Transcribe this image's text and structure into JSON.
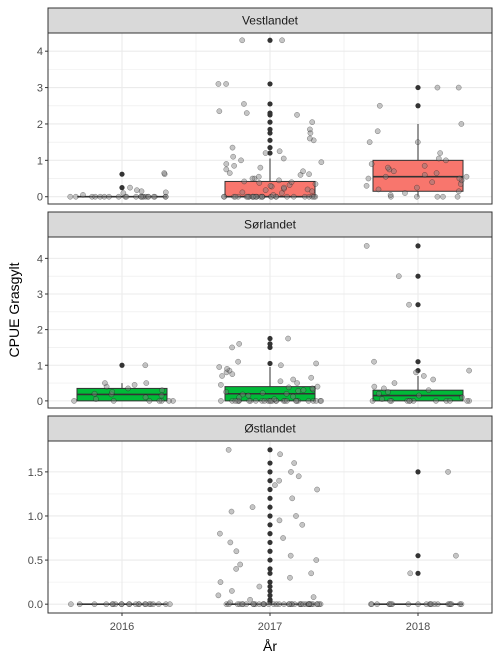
{
  "chart_data": {
    "type": "box",
    "ylabel": "CPUE Grasgylt",
    "xlabel": "År",
    "categories": [
      "2016",
      "2017",
      "2018"
    ],
    "colors": {
      "Vestlandet": "#F8766D",
      "Sørlandet": "#00BA38",
      "Østlandet": "#619CFF",
      "strip": "#D9D9D9",
      "grid": "#EBEBEB",
      "border": "#333333",
      "point": "#7F7F7F",
      "outlier": "#333333"
    },
    "panels": [
      {
        "name": "Vestlandet",
        "ylim": [
          -0.2,
          4.5
        ],
        "yticks": [
          0,
          1,
          2,
          3,
          4
        ],
        "ytick_labels": [
          "0",
          "1",
          "2",
          "3",
          "4"
        ],
        "boxes": [
          {
            "x": "2016",
            "q1": 0,
            "median": 0,
            "q3": 0,
            "whisker_low": 0,
            "whisker_high": 0,
            "outliers": [
              0.25,
              0.62
            ]
          },
          {
            "x": "2017",
            "q1": 0,
            "median": 0,
            "q3": 0.42,
            "whisker_low": 0,
            "whisker_high": 1.05,
            "outliers": [
              1.2,
              1.35,
              1.55,
              1.75,
              1.85,
              2.05,
              2.25,
              2.3,
              2.55,
              3.1,
              4.3
            ]
          },
          {
            "x": "2018",
            "q1": 0.15,
            "median": 0.55,
            "q3": 1.0,
            "whisker_low": 0,
            "whisker_high": 2.0,
            "outliers": [
              2.5,
              3.0
            ]
          }
        ],
        "points": [
          {
            "x": "2016",
            "values": [
              0,
              0,
              0,
              0,
              0,
              0,
              0,
              0,
              0,
              0,
              0,
              0,
              0,
              0,
              0,
              0,
              0,
              0,
              0,
              0,
              0,
              0,
              0.05,
              0.1,
              0.12,
              0.15,
              0.18,
              0.25,
              0.62,
              0.65
            ]
          },
          {
            "x": "2017",
            "values": [
              0,
              0,
              0,
              0,
              0,
              0,
              0,
              0,
              0,
              0,
              0,
              0,
              0,
              0,
              0,
              0,
              0,
              0,
              0,
              0,
              0,
              0,
              0,
              0,
              0,
              0,
              0,
              0,
              0,
              0,
              0,
              0.05,
              0.1,
              0.12,
              0.15,
              0.18,
              0.2,
              0.22,
              0.25,
              0.28,
              0.3,
              0.32,
              0.35,
              0.38,
              0.4,
              0.42,
              0.45,
              0.5,
              0.5,
              0.55,
              0.6,
              0.62,
              0.65,
              0.7,
              0.75,
              0.8,
              0.85,
              0.9,
              0.95,
              1.0,
              1.05,
              1.1,
              1.2,
              1.25,
              1.35,
              1.55,
              1.6,
              1.75,
              1.85,
              2.05,
              2.25,
              2.3,
              2.35,
              2.55,
              3.1,
              3.1,
              4.3,
              4.3
            ]
          },
          {
            "x": "2018",
            "values": [
              0,
              0,
              0,
              0,
              0,
              0.05,
              0.1,
              0.15,
              0.2,
              0.25,
              0.3,
              0.35,
              0.4,
              0.45,
              0.5,
              0.5,
              0.55,
              0.55,
              0.6,
              0.65,
              0.7,
              0.75,
              0.8,
              0.85,
              0.9,
              1.0,
              1.05,
              1.2,
              1.5,
              1.5,
              1.8,
              2.0,
              2.5,
              3.0,
              3.0
            ]
          }
        ]
      },
      {
        "name": "Sørlandet",
        "ylim": [
          -0.2,
          4.6
        ],
        "yticks": [
          0,
          1,
          2,
          3,
          4
        ],
        "ytick_labels": [
          "0",
          "1",
          "2",
          "3",
          "4"
        ],
        "boxes": [
          {
            "x": "2016",
            "q1": 0,
            "median": 0.18,
            "q3": 0.35,
            "whisker_low": 0,
            "whisker_high": 0.5,
            "outliers": [
              1.0
            ]
          },
          {
            "x": "2017",
            "q1": 0,
            "median": 0.2,
            "q3": 0.4,
            "whisker_low": 0,
            "whisker_high": 0.95,
            "outliers": [
              1.05,
              1.5,
              1.6,
              1.75
            ]
          },
          {
            "x": "2018",
            "q1": 0,
            "median": 0.15,
            "q3": 0.3,
            "whisker_low": 0,
            "whisker_high": 0.7,
            "outliers": [
              0.85,
              1.1,
              2.7,
              3.5,
              4.35
            ]
          }
        ],
        "points": [
          {
            "x": "2016",
            "values": [
              0,
              0,
              0,
              0,
              0,
              0,
              0,
              0.05,
              0.1,
              0.15,
              0.18,
              0.2,
              0.25,
              0.3,
              0.35,
              0.4,
              0.45,
              0.5,
              0.5,
              1.0
            ]
          },
          {
            "x": "2017",
            "values": [
              0,
              0,
              0,
              0,
              0,
              0,
              0,
              0,
              0,
              0,
              0,
              0,
              0,
              0,
              0,
              0,
              0,
              0,
              0,
              0,
              0,
              0,
              0,
              0,
              0,
              0,
              0,
              0,
              0.05,
              0.1,
              0.12,
              0.15,
              0.18,
              0.2,
              0.22,
              0.25,
              0.28,
              0.3,
              0.32,
              0.35,
              0.38,
              0.4,
              0.45,
              0.5,
              0.55,
              0.6,
              0.65,
              0.7,
              0.75,
              0.8,
              0.85,
              0.9,
              0.95,
              1.0,
              1.05,
              1.1,
              1.5,
              1.6,
              1.75
            ]
          },
          {
            "x": "2018",
            "values": [
              0,
              0,
              0,
              0,
              0,
              0,
              0,
              0,
              0,
              0,
              0,
              0,
              0.05,
              0.1,
              0.15,
              0.2,
              0.25,
              0.3,
              0.35,
              0.4,
              0.5,
              0.6,
              0.7,
              0.8,
              0.85,
              1.1,
              2.7,
              3.5,
              4.35
            ]
          }
        ]
      },
      {
        "name": "Østlandet",
        "ylim": [
          -0.1,
          1.85
        ],
        "yticks": [
          0,
          0.5,
          1.0,
          1.5
        ],
        "ytick_labels": [
          "0.0",
          "0.5",
          "1.0",
          "1.5"
        ],
        "boxes": [
          {
            "x": "2016",
            "q1": 0,
            "median": 0,
            "q3": 0,
            "whisker_low": 0,
            "whisker_high": 0,
            "outliers": []
          },
          {
            "x": "2017",
            "q1": 0,
            "median": 0,
            "q3": 0,
            "whisker_low": 0,
            "whisker_high": 0,
            "outliers": [
              0.03,
              0.05,
              0.1,
              0.15,
              0.2,
              0.25,
              0.35,
              0.4,
              0.5,
              0.6,
              0.7,
              0.8,
              0.9,
              1.0,
              1.1,
              1.2,
              1.3,
              1.4,
              1.5,
              1.6,
              1.75
            ]
          },
          {
            "x": "2018",
            "q1": 0,
            "median": 0,
            "q3": 0,
            "whisker_low": 0,
            "whisker_high": 0,
            "outliers": [
              0.35,
              0.55,
              1.5
            ]
          }
        ],
        "points": [
          {
            "x": "2016",
            "values": [
              0,
              0,
              0,
              0,
              0,
              0,
              0,
              0,
              0,
              0,
              0,
              0,
              0,
              0,
              0,
              0,
              0,
              0,
              0,
              0,
              0,
              0
            ]
          },
          {
            "x": "2017",
            "values": [
              0,
              0,
              0,
              0,
              0,
              0,
              0,
              0,
              0,
              0,
              0,
              0,
              0,
              0,
              0,
              0,
              0,
              0,
              0,
              0,
              0,
              0,
              0,
              0,
              0,
              0,
              0,
              0,
              0,
              0,
              0,
              0,
              0,
              0,
              0,
              0,
              0,
              0,
              0,
              0,
              0.02,
              0.05,
              0.08,
              0.1,
              0.15,
              0.2,
              0.25,
              0.3,
              0.35,
              0.4,
              0.45,
              0.5,
              0.55,
              0.6,
              0.7,
              0.75,
              0.8,
              0.9,
              0.95,
              1.0,
              1.05,
              1.1,
              1.2,
              1.3,
              1.35,
              1.4,
              1.45,
              1.5,
              1.6,
              1.7,
              1.75
            ]
          },
          {
            "x": "2018",
            "values": [
              0,
              0,
              0,
              0,
              0,
              0,
              0,
              0,
              0,
              0,
              0,
              0,
              0,
              0,
              0,
              0,
              0,
              0,
              0,
              0,
              0,
              0.35,
              0.55,
              1.5
            ]
          }
        ]
      }
    ]
  }
}
